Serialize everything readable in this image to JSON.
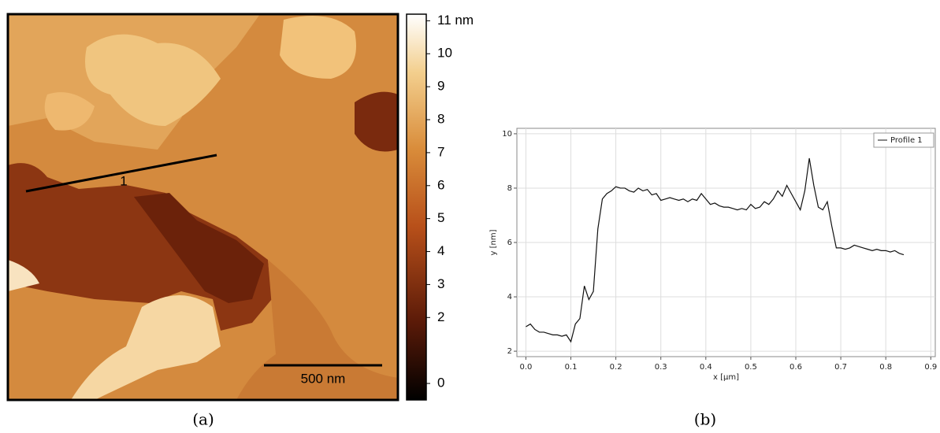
{
  "chart_data": [
    {
      "type": "heatmap",
      "colorbar": {
        "clim": [
          -0.5,
          11.2
        ],
        "ticks": [
          {
            "value": 11,
            "label": "11 nm"
          },
          10,
          9,
          8,
          7,
          6,
          5,
          4,
          3,
          2,
          0
        ]
      },
      "annotations": {
        "profile_label": "1",
        "scale_bar": "500 nm"
      },
      "caption": "(a)"
    },
    {
      "type": "line",
      "xlabel": "x [µm]",
      "ylabel": "y [nm]",
      "xlim": [
        -0.02,
        0.91
      ],
      "ylim": [
        1.8,
        10.2
      ],
      "xticks": [
        {
          "value": 0,
          "label": "0.0"
        },
        0.1,
        0.2,
        0.3,
        0.4,
        0.5,
        0.6,
        0.7,
        0.8,
        0.9
      ],
      "yticks": [
        2,
        4,
        6,
        8,
        10
      ],
      "grid": true,
      "legend": "upper right",
      "x": [
        0,
        0.01,
        0.02,
        0.03,
        0.04,
        0.05,
        0.06,
        0.07,
        0.08,
        0.09,
        0.1,
        0.11,
        0.12,
        0.13,
        0.14,
        0.15,
        0.16,
        0.17,
        0.18,
        0.19,
        0.2,
        0.21,
        0.22,
        0.23,
        0.24,
        0.25,
        0.26,
        0.27,
        0.28,
        0.29,
        0.3,
        0.31,
        0.32,
        0.33,
        0.34,
        0.35,
        0.36,
        0.37,
        0.38,
        0.39,
        0.4,
        0.41,
        0.42,
        0.43,
        0.44,
        0.45,
        0.46,
        0.47,
        0.48,
        0.49,
        0.5,
        0.51,
        0.52,
        0.53,
        0.54,
        0.55,
        0.56,
        0.57,
        0.58,
        0.59,
        0.6,
        0.61,
        0.62,
        0.63,
        0.64,
        0.65,
        0.66,
        0.67,
        0.68,
        0.69,
        0.7,
        0.71,
        0.72,
        0.73,
        0.74,
        0.75,
        0.76,
        0.77,
        0.78,
        0.79,
        0.8,
        0.81,
        0.82,
        0.83,
        0.84
      ],
      "series": [
        {
          "name": "Profile 1",
          "color": "#111111",
          "values": [
            2.9,
            3.0,
            2.8,
            2.7,
            2.7,
            2.65,
            2.6,
            2.6,
            2.55,
            2.6,
            2.35,
            3.0,
            3.2,
            4.4,
            3.9,
            4.2,
            6.5,
            7.6,
            7.8,
            7.9,
            8.05,
            8.0,
            8.0,
            7.9,
            7.85,
            8.0,
            7.9,
            7.95,
            7.75,
            7.8,
            7.55,
            7.6,
            7.65,
            7.6,
            7.55,
            7.6,
            7.5,
            7.6,
            7.55,
            7.8,
            7.6,
            7.4,
            7.45,
            7.35,
            7.3,
            7.3,
            7.25,
            7.2,
            7.25,
            7.2,
            7.4,
            7.25,
            7.3,
            7.5,
            7.4,
            7.6,
            7.9,
            7.7,
            8.1,
            7.8,
            7.5,
            7.2,
            7.9,
            9.1,
            8.1,
            7.3,
            7.2,
            7.5,
            6.6,
            5.8,
            5.8,
            5.75,
            5.8,
            5.9,
            5.85,
            5.8,
            5.75,
            5.7,
            5.75,
            5.7,
            5.7,
            5.65,
            5.7,
            5.6,
            5.55
          ]
        }
      ],
      "caption": "(b)"
    }
  ]
}
